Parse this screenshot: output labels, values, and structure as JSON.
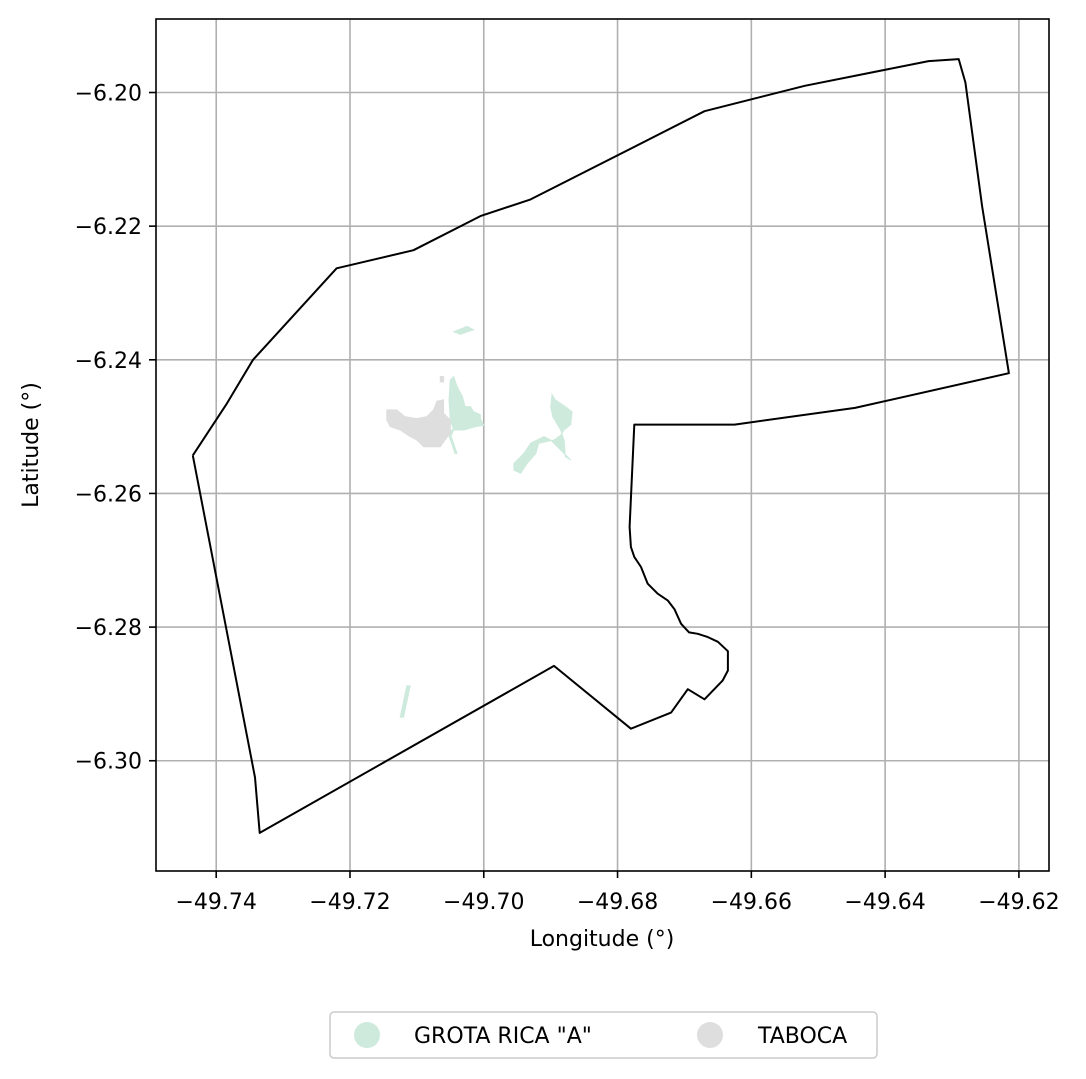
{
  "chart_data": {
    "type": "map",
    "xlabel": "Longitude (°)",
    "ylabel": "Latitude (°)",
    "xlim": [
      -49.749,
      -49.6155
    ],
    "ylim": [
      -6.3165,
      -6.189
    ],
    "grid": true,
    "legend_placement": "bottom-center",
    "xticks": [
      {
        "value": -49.74,
        "label": "−49.74"
      },
      {
        "value": -49.72,
        "label": "−49.72"
      },
      {
        "value": -49.7,
        "label": "−49.70"
      },
      {
        "value": -49.68,
        "label": "−49.68"
      },
      {
        "value": -49.66,
        "label": "−49.66"
      },
      {
        "value": -49.64,
        "label": "−49.64"
      },
      {
        "value": -49.62,
        "label": "−49.62"
      }
    ],
    "yticks": [
      {
        "value": -6.2,
        "label": "−6.20"
      },
      {
        "value": -6.22,
        "label": "−6.22"
      },
      {
        "value": -6.24,
        "label": "−6.24"
      },
      {
        "value": -6.26,
        "label": "−6.26"
      },
      {
        "value": -6.28,
        "label": "−6.28"
      },
      {
        "value": -6.3,
        "label": "−6.30"
      }
    ],
    "boundary": [
      [
        -49.7435,
        -6.2543
      ],
      [
        -49.7385,
        -6.2467
      ],
      [
        -49.7345,
        -6.24
      ],
      [
        -49.722,
        -6.2263
      ],
      [
        -49.7105,
        -6.2236
      ],
      [
        -49.7005,
        -6.2185
      ],
      [
        -49.693,
        -6.216
      ],
      [
        -49.667,
        -6.2028
      ],
      [
        -49.652,
        -6.199
      ],
      [
        -49.6335,
        -6.1953
      ],
      [
        -49.629,
        -6.195
      ],
      [
        -49.628,
        -6.1985
      ],
      [
        -49.6255,
        -6.217
      ],
      [
        -49.6215,
        -6.242
      ],
      [
        -49.6445,
        -6.2472
      ],
      [
        -49.6625,
        -6.2497
      ],
      [
        -49.6775,
        -6.2497
      ],
      [
        -49.6782,
        -6.265
      ],
      [
        -49.678,
        -6.268
      ],
      [
        -49.6775,
        -6.2695
      ],
      [
        -49.6765,
        -6.271
      ],
      [
        -49.6755,
        -6.2735
      ],
      [
        -49.674,
        -6.275
      ],
      [
        -49.6725,
        -6.276
      ],
      [
        -49.6715,
        -6.2773
      ],
      [
        -49.6705,
        -6.2795
      ],
      [
        -49.6693,
        -6.2808
      ],
      [
        -49.668,
        -6.281
      ],
      [
        -49.6665,
        -6.2815
      ],
      [
        -49.665,
        -6.2822
      ],
      [
        -49.6635,
        -6.2836
      ],
      [
        -49.6635,
        -6.2865
      ],
      [
        -49.6643,
        -6.288
      ],
      [
        -49.667,
        -6.2908
      ],
      [
        -49.6695,
        -6.2893
      ],
      [
        -49.672,
        -6.2928
      ],
      [
        -49.678,
        -6.2952
      ],
      [
        -49.6895,
        -6.2858
      ],
      [
        -49.7335,
        -6.3108
      ],
      [
        -49.7342,
        -6.3025
      ],
      [
        -49.7435,
        -6.2543
      ]
    ],
    "series": [
      {
        "name": "GROTA RICA \"A\"",
        "color": "#cdeadd",
        "polygons": [
          [
            [
              -49.7045,
              -6.2425
            ],
            [
              -49.704,
              -6.244
            ],
            [
              -49.7032,
              -6.2455
            ],
            [
              -49.7028,
              -6.247
            ],
            [
              -49.702,
              -6.247
            ],
            [
              -49.7015,
              -6.2478
            ],
            [
              -49.7005,
              -6.2482
            ],
            [
              -49.7005,
              -6.2488
            ],
            [
              -49.7,
              -6.2498
            ],
            [
              -49.7012,
              -6.25
            ],
            [
              -49.703,
              -6.2505
            ],
            [
              -49.7045,
              -6.2505
            ],
            [
              -49.705,
              -6.249
            ],
            [
              -49.7052,
              -6.246
            ],
            [
              -49.705,
              -6.243
            ]
          ],
          [
            [
              -49.6945,
              -6.257
            ],
            [
              -49.6935,
              -6.2555
            ],
            [
              -49.6922,
              -6.254
            ],
            [
              -49.6918,
              -6.2525
            ],
            [
              -49.6895,
              -6.252
            ],
            [
              -49.6885,
              -6.2513
            ],
            [
              -49.688,
              -6.2505
            ],
            [
              -49.687,
              -6.2497
            ],
            [
              -49.6868,
              -6.2478
            ],
            [
              -49.6878,
              -6.247
            ],
            [
              -49.6893,
              -6.246
            ],
            [
              -49.6898,
              -6.2452
            ],
            [
              -49.69,
              -6.247
            ],
            [
              -49.6897,
              -6.2485
            ],
            [
              -49.6885,
              -6.2505
            ],
            [
              -49.688,
              -6.252
            ],
            [
              -49.6878,
              -6.2545
            ],
            [
              -49.687,
              -6.255
            ],
            [
              -49.688,
              -6.254
            ],
            [
              -49.69,
              -6.252
            ],
            [
              -49.691,
              -6.2515
            ],
            [
              -49.693,
              -6.2525
            ],
            [
              -49.694,
              -6.254
            ],
            [
              -49.6955,
              -6.2555
            ],
            [
              -49.6955,
              -6.2565
            ]
          ],
          [
            [
              -49.704,
              -6.254
            ],
            [
              -49.7043,
              -6.254
            ],
            [
              -49.7055,
              -6.2505
            ],
            [
              -49.7052,
              -6.2505
            ]
          ],
          [
            [
              -49.711,
              -6.2888
            ],
            [
              -49.7115,
              -6.2888
            ],
            [
              -49.7125,
              -6.2935
            ],
            [
              -49.712,
              -6.2935
            ]
          ],
          [
            [
              -49.7045,
              -6.2358
            ],
            [
              -49.7025,
              -6.235
            ],
            [
              -49.7015,
              -6.2355
            ],
            [
              -49.7035,
              -6.2362
            ]
          ],
          [
            [
              -49.7045,
              -6.2505
            ],
            [
              -49.706,
              -6.2505
            ],
            [
              -49.7062,
              -6.2512
            ],
            [
              -49.7048,
              -6.2512
            ]
          ]
        ]
      },
      {
        "name": "TABOCA",
        "color": "#dedede",
        "polygons": [
          [
            [
              -49.7145,
              -6.2475
            ],
            [
              -49.713,
              -6.2475
            ],
            [
              -49.7118,
              -6.2485
            ],
            [
              -49.71,
              -6.2488
            ],
            [
              -49.7085,
              -6.2485
            ],
            [
              -49.7075,
              -6.2475
            ],
            [
              -49.707,
              -6.2462
            ],
            [
              -49.706,
              -6.246
            ],
            [
              -49.706,
              -6.248
            ],
            [
              -49.705,
              -6.249
            ],
            [
              -49.705,
              -6.251
            ],
            [
              -49.7058,
              -6.252
            ],
            [
              -49.7065,
              -6.253
            ],
            [
              -49.709,
              -6.253
            ],
            [
              -49.71,
              -6.252
            ],
            [
              -49.711,
              -6.2515
            ],
            [
              -49.7125,
              -6.2505
            ],
            [
              -49.714,
              -6.25
            ],
            [
              -49.7145,
              -6.249
            ]
          ],
          [
            [
              -49.7065,
              -6.2425
            ],
            [
              -49.706,
              -6.2425
            ],
            [
              -49.706,
              -6.2433
            ],
            [
              -49.7065,
              -6.2433
            ]
          ]
        ]
      }
    ]
  },
  "legend": {
    "items": [
      {
        "label": "GROTA RICA \"A\"",
        "color": "#cdeadd"
      },
      {
        "label": "TABOCA",
        "color": "#dedede"
      }
    ]
  }
}
